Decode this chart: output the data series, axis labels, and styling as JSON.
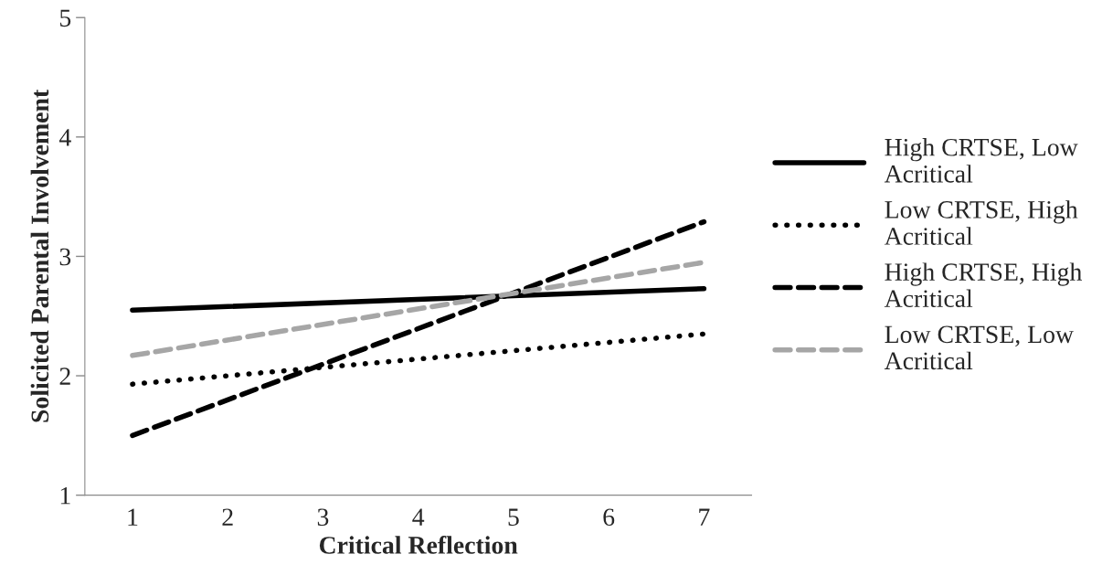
{
  "chart_data": {
    "type": "line",
    "xlabel": "Critical Reflection",
    "ylabel": "Solicited Parental Involvement",
    "categories": [
      "1",
      "2",
      "3",
      "4",
      "5",
      "6",
      "7"
    ],
    "series": [
      {
        "name": "High CRTSE, Low Acritical",
        "color": "#000000",
        "line_style": "solid",
        "x": [
          "1",
          "7"
        ],
        "values": [
          2.55,
          2.73
        ]
      },
      {
        "name": "Low CRTSE, High Acritical",
        "color": "#000000",
        "line_style": "dotted",
        "x": [
          "1",
          "7"
        ],
        "values": [
          1.93,
          2.35
        ]
      },
      {
        "name": "High CRTSE, High Acritical",
        "color": "#000000",
        "line_style": "dashed",
        "x": [
          "1",
          "7"
        ],
        "values": [
          1.5,
          3.29
        ]
      },
      {
        "name": "Low CRTSE, Low Acritical",
        "color": "#a6a6a6",
        "line_style": "dashed",
        "x": [
          "1",
          "7"
        ],
        "values": [
          2.17,
          2.95
        ]
      }
    ],
    "ylim": [
      1,
      5
    ],
    "yticks": [
      1,
      2,
      3,
      4,
      5
    ],
    "grid": false,
    "legend": "right",
    "marker": "none"
  }
}
